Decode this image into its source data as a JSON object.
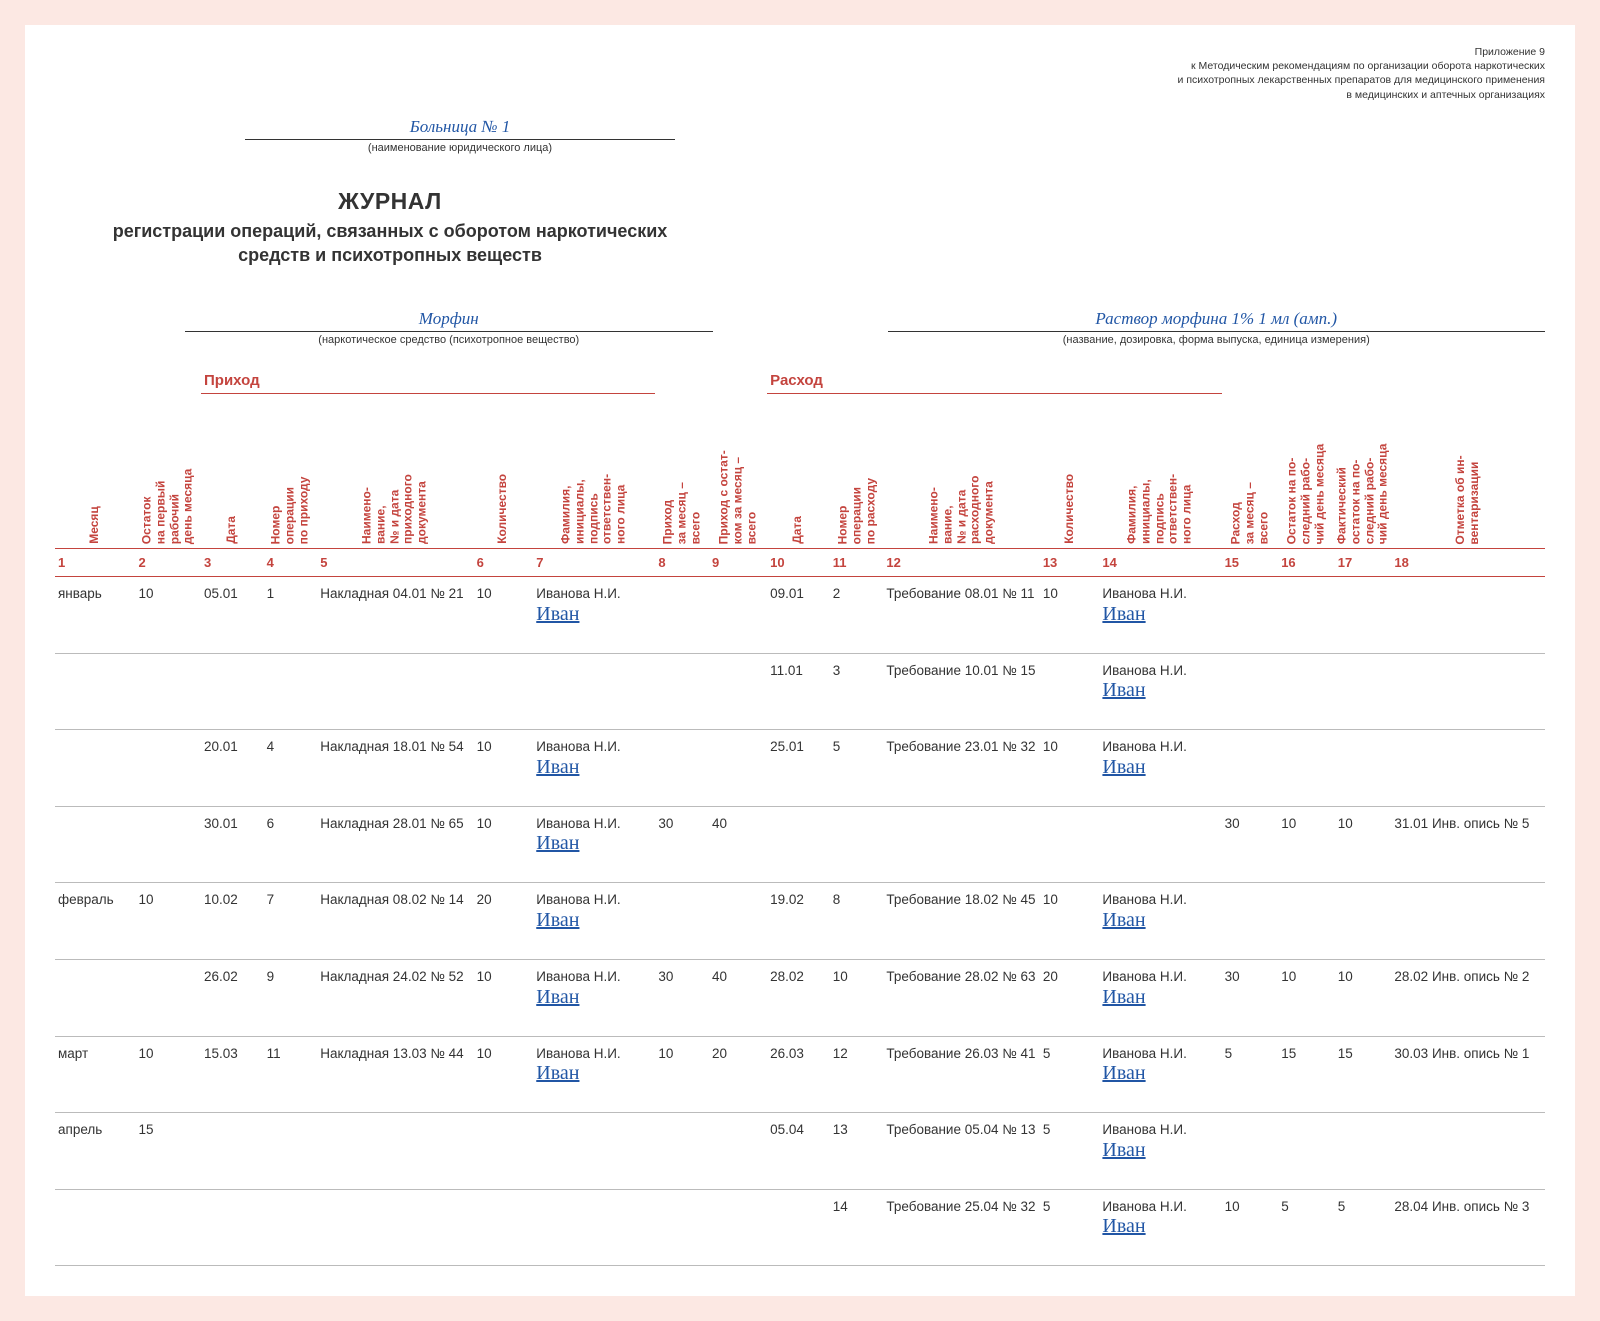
{
  "appendix": {
    "line1": "Приложение 9",
    "line2": "к Методическим рекомендациям по организации оборота наркотических",
    "line3": "и психотропных лекарственных препаратов для медицинского применения",
    "line4": "в медицинских и аптечных организациях"
  },
  "org": {
    "name": "Больница № 1",
    "caption": "(наименование юридического лица)"
  },
  "title": {
    "big": "ЖУРНАЛ",
    "sub": "регистрации операций, связанных с оборотом наркотических средств и психотропных веществ"
  },
  "sub_left": {
    "value": "Морфин",
    "caption": "(наркотическое средство (психотропное вещество)"
  },
  "sub_right": {
    "value": "Раствор морфина 1% 1 мл (амп.)",
    "caption": "(название, дозировка, форма выпуска, единица измерения)"
  },
  "groups": {
    "income": "Приход",
    "expense": "Расход"
  },
  "headers": [
    "Месяц",
    "Остаток\nна первый\nрабочий\nдень месяца",
    "Дата",
    "Номер\nоперации\nпо приходу",
    "Наимено-\nвание,\n№ и дата\nприходного\nдокумента",
    "Количество",
    "Фамилия,\nинициалы,\nподпись\nответствен-\nного лица",
    "Приход\nза месяц –\nвсего",
    "Приход с остат-\nком за месяц –\nвсего",
    "Дата",
    "Номер\nоперации\nпо расходу",
    "Наимено-\nвание,\n№ и дата\nрасходного\nдокумента",
    "Количество",
    "Фамилия,\nинициалы,\nподпись\nответствен-\nного лица",
    "Расход\nза месяц –\nвсего",
    "Остаток на по-\nследний рабо-\nчий день месяца",
    "Фактический\nостаток на по-\nследний рабо-\nчий день месяца",
    "Отметка об ин-\nвентаризации"
  ],
  "col_widths_pct": [
    5.4,
    4.4,
    4.2,
    3.6,
    10.5,
    4.0,
    8.2,
    3.6,
    3.9,
    4.2,
    3.6,
    10.5,
    4.0,
    8.2,
    3.8,
    3.8,
    3.8,
    10.3
  ],
  "nums": [
    "1",
    "2",
    "3",
    "4",
    "5",
    "6",
    "7",
    "8",
    "9",
    "10",
    "11",
    "12",
    "13",
    "14",
    "15",
    "16",
    "17",
    "18"
  ],
  "signature_text": "Иван",
  "rows": [
    {
      "c1": "январь",
      "c2": "10",
      "c3": "05.01",
      "c4": "1",
      "c5": "Накладная 04.01 № 21",
      "c6": "10",
      "c7": "Иванова Н.И.",
      "sig7": true,
      "c8": "",
      "c9": "",
      "c10": "09.01",
      "c11": "2",
      "c12": "Требование 08.01 № 11",
      "c13": "10",
      "c14": "Иванова Н.И.",
      "sig14": true,
      "c15": "",
      "c16": "",
      "c17": "",
      "c18": ""
    },
    {
      "c1": "",
      "c2": "",
      "c3": "",
      "c4": "",
      "c5": "",
      "c6": "",
      "c7": "",
      "sig7": false,
      "c8": "",
      "c9": "",
      "c10": "11.01",
      "c11": "3",
      "c12": "Требование 10.01 № 15",
      "c13": "",
      "c14": "Иванова Н.И.",
      "sig14": true,
      "c15": "",
      "c16": "",
      "c17": "",
      "c18": ""
    },
    {
      "c1": "",
      "c2": "",
      "c3": "20.01",
      "c4": "4",
      "c5": "Накладная 18.01 № 54",
      "c6": "10",
      "c7": "Иванова Н.И.",
      "sig7": true,
      "c8": "",
      "c9": "",
      "c10": "25.01",
      "c11": "5",
      "c12": "Требование 23.01 № 32",
      "c13": "10",
      "c14": "Иванова Н.И.",
      "sig14": true,
      "c15": "",
      "c16": "",
      "c17": "",
      "c18": ""
    },
    {
      "c1": "",
      "c2": "",
      "c3": "30.01",
      "c4": "6",
      "c5": "Накладная 28.01 № 65",
      "c6": "10",
      "c7": "Иванова Н.И.",
      "sig7": true,
      "c8": "30",
      "c9": "40",
      "c10": "",
      "c11": "",
      "c12": "",
      "c13": "",
      "c14": "",
      "sig14": false,
      "c15": "30",
      "c16": "10",
      "c17": "10",
      "c18": "31.01 Инв. опись № 5"
    },
    {
      "c1": "февраль",
      "c2": "10",
      "c3": "10.02",
      "c4": "7",
      "c5": "Накладная 08.02 № 14",
      "c6": "20",
      "c7": "Иванова Н.И.",
      "sig7": true,
      "c8": "",
      "c9": "",
      "c10": "19.02",
      "c11": "8",
      "c12": "Требование 18.02 № 45",
      "c13": "10",
      "c14": "Иванова Н.И.",
      "sig14": true,
      "c15": "",
      "c16": "",
      "c17": "",
      "c18": ""
    },
    {
      "c1": "",
      "c2": "",
      "c3": "26.02",
      "c4": "9",
      "c5": "Накладная 24.02 № 52",
      "c6": "10",
      "c7": "Иванова Н.И.",
      "sig7": true,
      "c8": "30",
      "c9": "40",
      "c10": "28.02",
      "c11": "10",
      "c12": "Требование 28.02 № 63",
      "c13": "20",
      "c14": "Иванова Н.И.",
      "sig14": true,
      "c15": "30",
      "c16": "10",
      "c17": "10",
      "c18": "28.02 Инв. опись № 2"
    },
    {
      "c1": "март",
      "c2": "10",
      "c3": "15.03",
      "c4": "11",
      "c5": "Накладная 13.03 № 44",
      "c6": "10",
      "c7": "Иванова Н.И.",
      "sig7": true,
      "c8": "10",
      "c9": "20",
      "c10": "26.03",
      "c11": "12",
      "c12": "Требование 26.03 № 41",
      "c13": "5",
      "c14": "Иванова Н.И.",
      "sig14": true,
      "c15": "5",
      "c16": "15",
      "c17": "15",
      "c18": "30.03 Инв. опись № 1"
    },
    {
      "c1": "апрель",
      "c2": "15",
      "c3": "",
      "c4": "",
      "c5": "",
      "c6": "",
      "c7": "",
      "sig7": false,
      "c8": "",
      "c9": "",
      "c10": "05.04",
      "c11": "13",
      "c12": "Требование 05.04 № 13",
      "c13": "5",
      "c14": "Иванова Н.И.",
      "sig14": true,
      "c15": "",
      "c16": "",
      "c17": "",
      "c18": ""
    },
    {
      "c1": "",
      "c2": "",
      "c3": "",
      "c4": "",
      "c5": "",
      "c6": "",
      "c7": "",
      "sig7": false,
      "c8": "",
      "c9": "",
      "c10": "",
      "c11": "14",
      "c12": "Требование 25.04 № 32",
      "c13": "5",
      "c14": "Иванова Н.И.",
      "sig14": true,
      "c15": "10",
      "c16": "5",
      "c17": "5",
      "c18": "28.04 Инв. опись № 3"
    }
  ]
}
